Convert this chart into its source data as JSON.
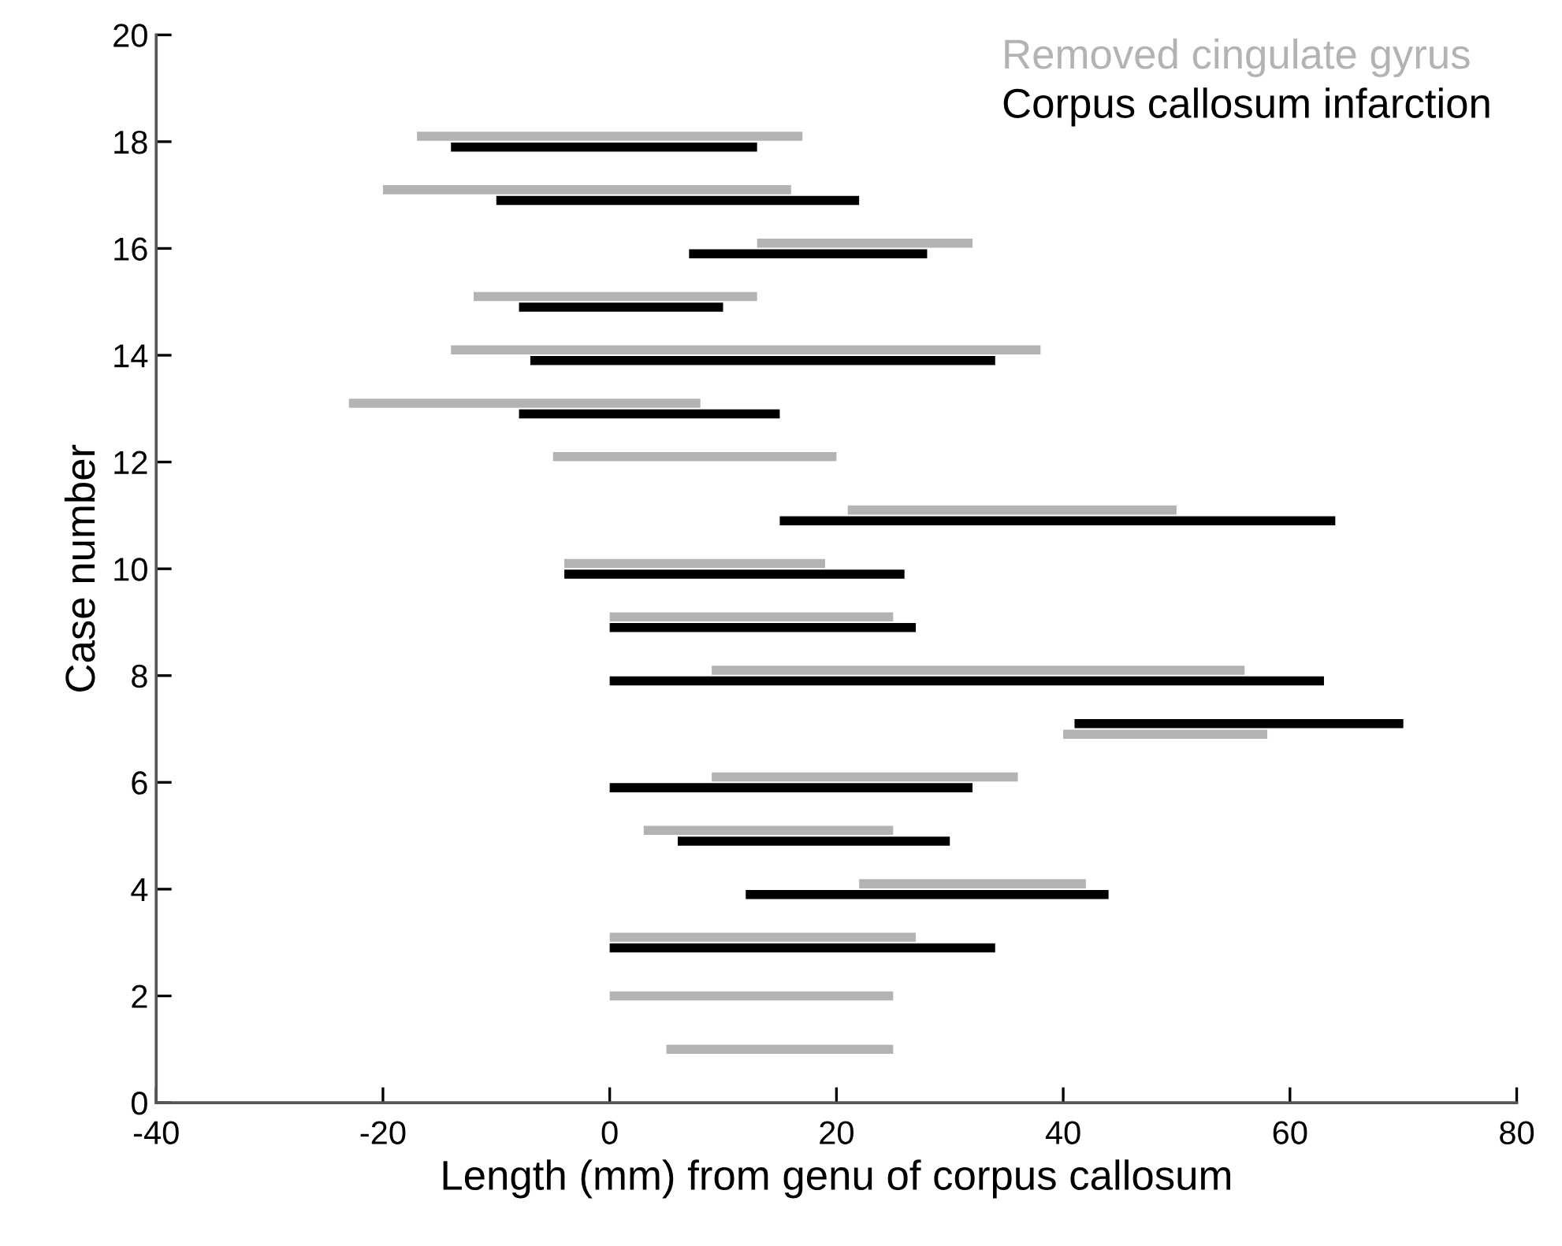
{
  "chart_data": {
    "type": "bar",
    "orientation": "horizontal",
    "xlabel": "Length (mm) from genu of corpus callosum",
    "ylabel": "Case number",
    "xlim": [
      -40,
      80
    ],
    "xticks": [
      -40,
      -20,
      0,
      20,
      40,
      60,
      80
    ],
    "ylim": [
      0,
      20
    ],
    "yticks": [
      0,
      2,
      4,
      6,
      8,
      10,
      12,
      14,
      16,
      18,
      20
    ],
    "grid": false,
    "legend": "top right",
    "series": [
      {
        "name": "Removed cingulate gyrus",
        "color": "#b3b3b3",
        "x": [
          18.1,
          17.1,
          16.1,
          15.1,
          14.1,
          13.1,
          12.1,
          11.1,
          10.1,
          9.1,
          8.1,
          6.9,
          6.1,
          5.1,
          4.1,
          3.1,
          2.0,
          1.0
        ],
        "base": [
          -17,
          -20,
          13,
          -12,
          -14,
          -23,
          -5,
          21,
          -4,
          0,
          9,
          40,
          9,
          3,
          22,
          0,
          0,
          5
        ],
        "values": [
          34,
          36,
          19,
          25,
          52,
          31,
          25,
          29,
          23,
          25,
          47,
          18,
          27,
          22,
          20,
          27,
          25,
          20
        ]
      },
      {
        "name": "Corpus callosum infarction",
        "color": "#000000",
        "x": [
          17.9,
          16.9,
          15.9,
          14.9,
          13.9,
          12.9,
          10.9,
          9.9,
          8.9,
          7.9,
          7.1,
          5.9,
          4.9,
          3.9,
          2.9
        ],
        "base": [
          -14,
          -10,
          7,
          -8,
          -7,
          -8,
          15,
          -4,
          0,
          0,
          41,
          0,
          6,
          12,
          0
        ],
        "values": [
          27,
          32,
          21,
          18,
          41,
          23,
          49,
          30,
          27,
          63,
          29,
          32,
          24,
          32,
          34
        ]
      }
    ]
  }
}
